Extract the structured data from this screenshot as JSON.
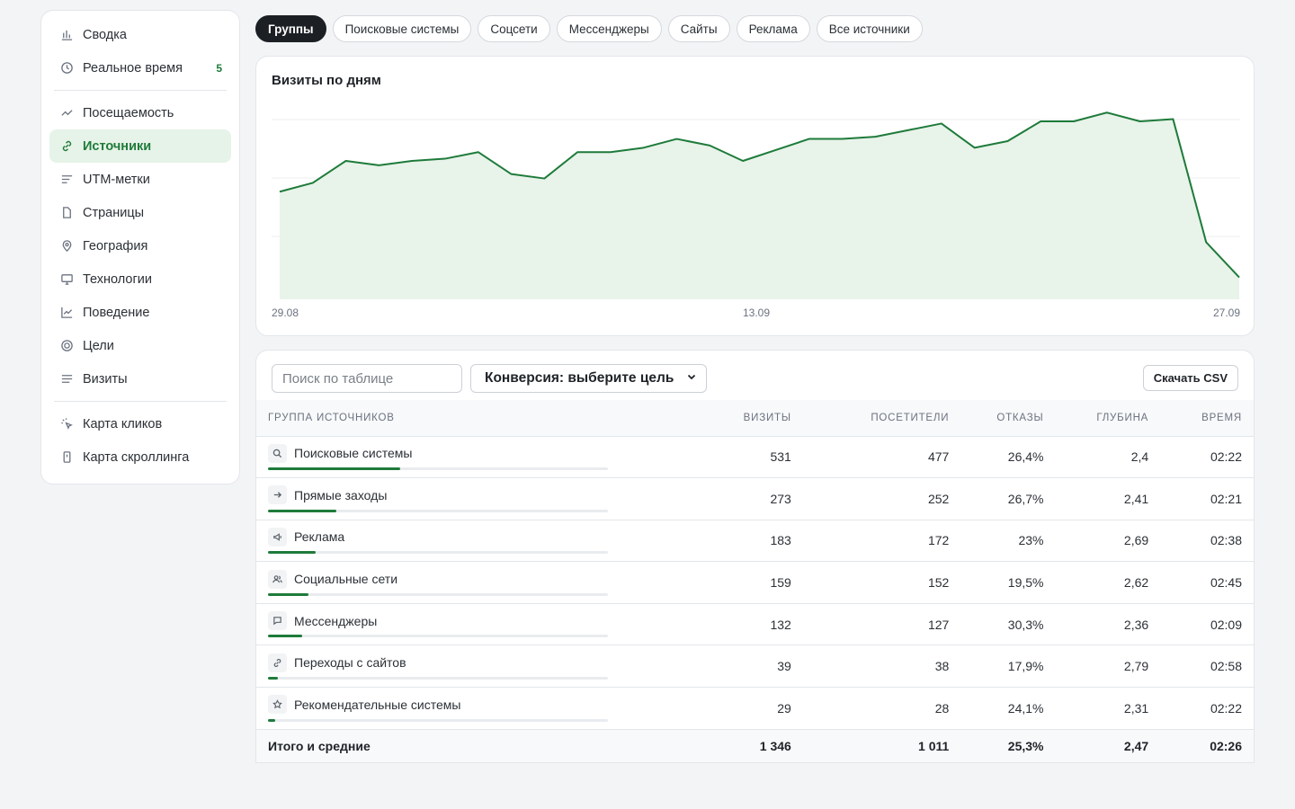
{
  "sidebar": {
    "group1": [
      {
        "label": "Сводка",
        "icon": "bar-chart-icon"
      },
      {
        "label": "Реальное время",
        "icon": "clock-icon",
        "count": "5"
      }
    ],
    "group2": [
      {
        "label": "Посещаемость",
        "icon": "trend-icon"
      },
      {
        "label": "Источники",
        "icon": "link-icon",
        "active": true
      },
      {
        "label": "UTM-метки",
        "icon": "lines-icon"
      },
      {
        "label": "Страницы",
        "icon": "file-icon"
      },
      {
        "label": "География",
        "icon": "map-pin-icon"
      },
      {
        "label": "Технологии",
        "icon": "monitor-icon"
      },
      {
        "label": "Поведение",
        "icon": "line-chart-icon"
      },
      {
        "label": "Цели",
        "icon": "target-icon"
      },
      {
        "label": "Визиты",
        "icon": "list-icon"
      }
    ],
    "group3": [
      {
        "label": "Карта кликов",
        "icon": "click-icon"
      },
      {
        "label": "Карта скроллинга",
        "icon": "phone-icon"
      }
    ]
  },
  "tabs": [
    "Группы",
    "Поисковые системы",
    "Соцсети",
    "Мессенджеры",
    "Сайты",
    "Реклама",
    "Все источники"
  ],
  "active_tab": 0,
  "chart_data": {
    "type": "area",
    "title": "Визиты по дням",
    "x_tick_labels": [
      "29.08",
      "13.09",
      "27.09"
    ],
    "x": [
      "29.08",
      "30.08",
      "31.08",
      "01.09",
      "02.09",
      "03.09",
      "04.09",
      "05.09",
      "06.09",
      "07.09",
      "08.09",
      "09.09",
      "10.09",
      "11.09",
      "12.09",
      "13.09",
      "14.09",
      "15.09",
      "16.09",
      "17.09",
      "18.09",
      "19.09",
      "20.09",
      "21.09",
      "22.09",
      "23.09",
      "24.09",
      "25.09",
      "26.09",
      "27.09"
    ],
    "values": [
      49,
      53,
      63,
      61,
      63,
      64,
      67,
      57,
      55,
      67,
      67,
      69,
      73,
      70,
      63,
      68,
      73,
      73,
      74,
      77,
      80,
      69,
      72,
      81,
      81,
      85,
      81,
      82,
      26,
      10
    ],
    "ylim": [
      0,
      90
    ],
    "grid": true,
    "color": "#1e7b3a",
    "fill": "#e8f3ea"
  },
  "table": {
    "search_placeholder": "Поиск по таблице",
    "select_label": "Конверсия: выберите цель",
    "csv_label": "Скачать CSV",
    "columns": [
      "ГРУППА ИСТОЧНИКОВ",
      "ВИЗИТЫ",
      "ПОСЕТИТЕЛИ",
      "ОТКАЗЫ",
      "ГЛУБИНА",
      "ВРЕМЯ"
    ],
    "rows": [
      {
        "name": "Поисковые системы",
        "icon": "search-icon",
        "share": 0.39,
        "visits": "531",
        "visitors": "477",
        "bounce": "26,4%",
        "depth": "2,4",
        "time": "02:22"
      },
      {
        "name": "Прямые заходы",
        "icon": "arrow-right-icon",
        "share": 0.2,
        "visits": "273",
        "visitors": "252",
        "bounce": "26,7%",
        "depth": "2,41",
        "time": "02:21"
      },
      {
        "name": "Реклама",
        "icon": "megaphone-icon",
        "share": 0.14,
        "visits": "183",
        "visitors": "172",
        "bounce": "23%",
        "depth": "2,69",
        "time": "02:38"
      },
      {
        "name": "Социальные сети",
        "icon": "users-icon",
        "share": 0.12,
        "visits": "159",
        "visitors": "152",
        "bounce": "19,5%",
        "depth": "2,62",
        "time": "02:45"
      },
      {
        "name": "Мессенджеры",
        "icon": "chat-icon",
        "share": 0.1,
        "visits": "132",
        "visitors": "127",
        "bounce": "30,3%",
        "depth": "2,36",
        "time": "02:09"
      },
      {
        "name": "Переходы с сайтов",
        "icon": "link-icon",
        "share": 0.03,
        "visits": "39",
        "visitors": "38",
        "bounce": "17,9%",
        "depth": "2,79",
        "time": "02:58"
      },
      {
        "name": "Рекомендательные системы",
        "icon": "star-icon",
        "share": 0.02,
        "visits": "29",
        "visitors": "28",
        "bounce": "24,1%",
        "depth": "2,31",
        "time": "02:22"
      }
    ],
    "totals": {
      "label": "Итого и средние",
      "visits": "1 346",
      "visitors": "1 011",
      "bounce": "25,3%",
      "depth": "2,47",
      "time": "02:26"
    }
  }
}
